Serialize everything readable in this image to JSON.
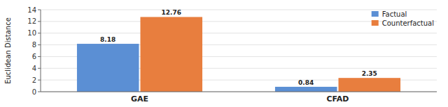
{
  "chart_data": {
    "type": "bar",
    "categories": [
      "GAE",
      "CFAD"
    ],
    "series": [
      {
        "name": "Factual",
        "color": "#5B8FD4",
        "values": [
          8.18,
          0.84
        ]
      },
      {
        "name": "Counterfactual",
        "color": "#E87E3E",
        "values": [
          12.76,
          2.35
        ]
      }
    ],
    "ylabel": "Euclidean Distance",
    "ylim": [
      0,
      14
    ],
    "yticks": [
      0,
      2,
      4,
      6,
      8,
      10,
      12,
      14
    ],
    "grid": true,
    "legend": "upper right",
    "data_labels": true
  }
}
